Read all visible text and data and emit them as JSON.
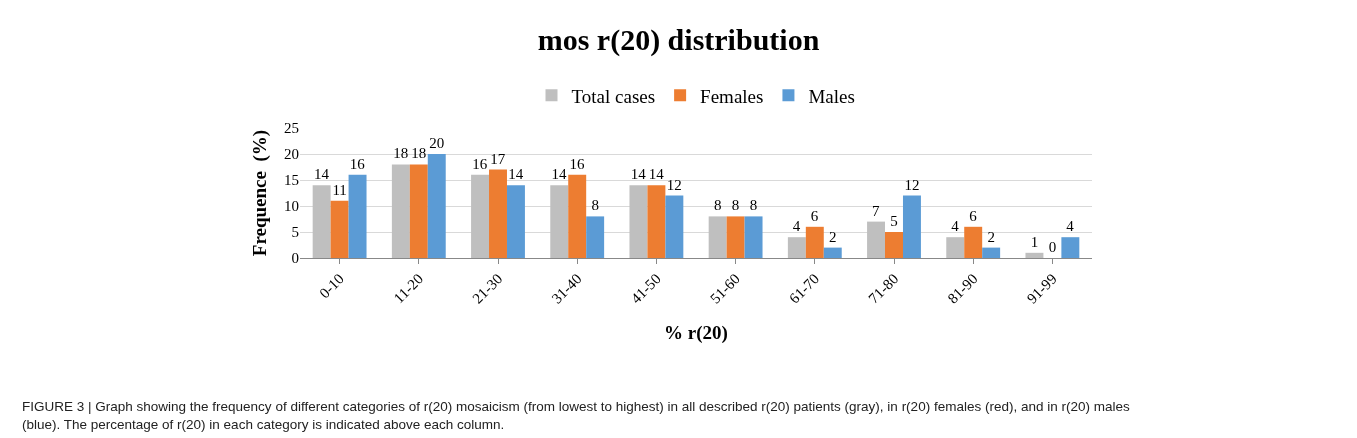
{
  "chart_data": {
    "type": "bar",
    "title": "mos r(20) distribution",
    "xlabel": "% r(20)",
    "ylabel": "Frequence  (%)",
    "categories": [
      "0-10",
      "11-20",
      "21-30",
      "31-40",
      "41-50",
      "51-60",
      "61-70",
      "71-80",
      "81-90",
      "91-99"
    ],
    "series": [
      {
        "name": "Total cases",
        "color": "#bfbfbf",
        "values": [
          14,
          18,
          16,
          14,
          14,
          8,
          4,
          7,
          4,
          1
        ]
      },
      {
        "name": "Females",
        "color": "#ed7d31",
        "values": [
          11,
          18,
          17,
          16,
          14,
          8,
          6,
          5,
          6,
          0
        ]
      },
      {
        "name": "Males",
        "color": "#5b9bd5",
        "values": [
          16,
          20,
          14,
          8,
          12,
          8,
          2,
          12,
          2,
          4
        ]
      }
    ],
    "data_labels": true,
    "ylim": [
      0,
      25
    ],
    "yticks": [
      0,
      5,
      10,
      15,
      20,
      25
    ],
    "grid": "y",
    "legend": "top",
    "annotations": [
      "FIGURE 3 | Graph showing the frequency of different categories of r(20) mosaicism (from lowest to highest) in all described r(20) patients (gray), in r(20) females (red), and in r(20) males (blue). The percentage of r(20) in each category is indicated above each column."
    ]
  }
}
